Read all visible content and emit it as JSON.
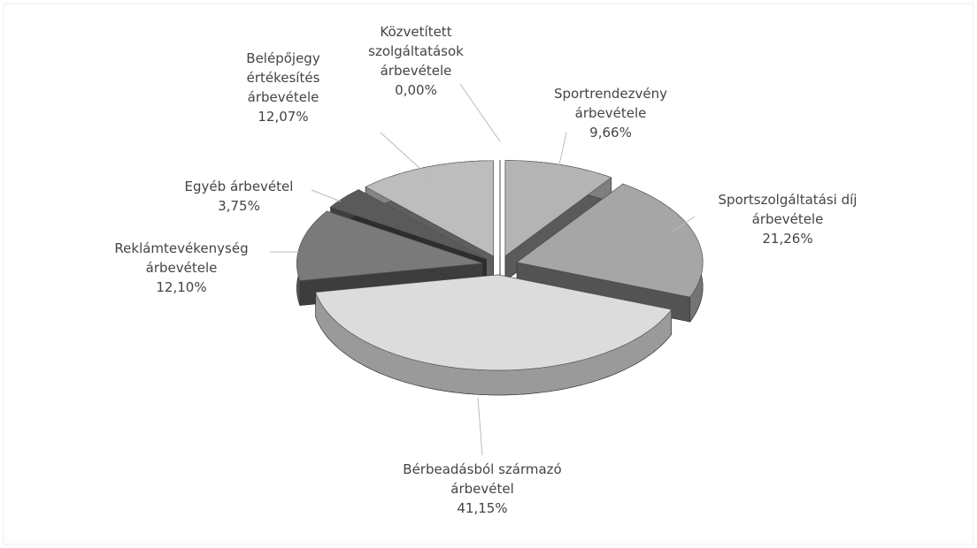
{
  "chart_data": {
    "type": "pie",
    "categories": [
      "Közvetített szolgáltatások árbevétele",
      "Sportrendezvény árbevétele",
      "Sportszolgáltatási díj árbevétele",
      "Bérbeadásból származó árbevétel",
      "Reklámtevékenység árbevétele",
      "Egyéb árbevétel",
      "Belépőjegy értékesítés árbevétele"
    ],
    "values": [
      0,
      9.66,
      21.26,
      41.15,
      12.1,
      3.75,
      12.07
    ],
    "value_labels": [
      "0,00%",
      "9,66%",
      "21,26%",
      "41,15%",
      "12,10%",
      "3,75%",
      "12,07%"
    ],
    "colors": [
      "#c8c8c8",
      "#b4b4b4",
      "#a6a6a6",
      "#dcdcdc",
      "#7a7a7a",
      "#5a5a5a",
      "#bdbdbd"
    ]
  }
}
